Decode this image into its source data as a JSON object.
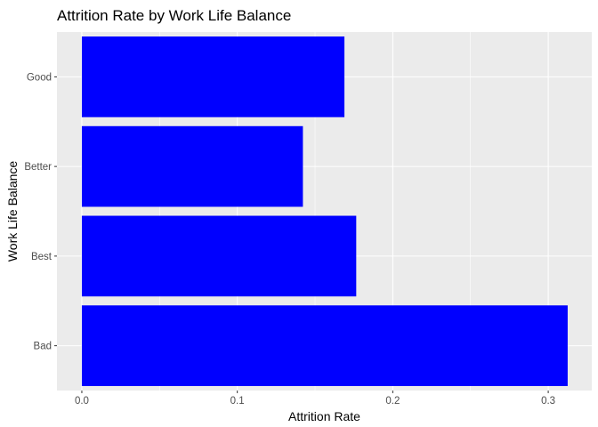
{
  "chart_data": {
    "type": "bar",
    "orientation": "horizontal",
    "title": "Attrition Rate by Work Life Balance",
    "xlabel": "Attrition Rate",
    "ylabel": "Work Life Balance",
    "categories": [
      "Bad",
      "Best",
      "Better",
      "Good"
    ],
    "values": [
      0.3125,
      0.1765,
      0.1422,
      0.1689
    ],
    "x_ticks": [
      0.0,
      0.1,
      0.2,
      0.3
    ],
    "x_tick_labels": [
      "0.0",
      "0.1",
      "0.2",
      "0.3"
    ],
    "xlim": [
      -0.016,
      0.328
    ],
    "bar_color": "#0000ff",
    "panel_background": "#ebebeb",
    "grid_color": "#ffffff",
    "grid": true,
    "legend": "none"
  }
}
